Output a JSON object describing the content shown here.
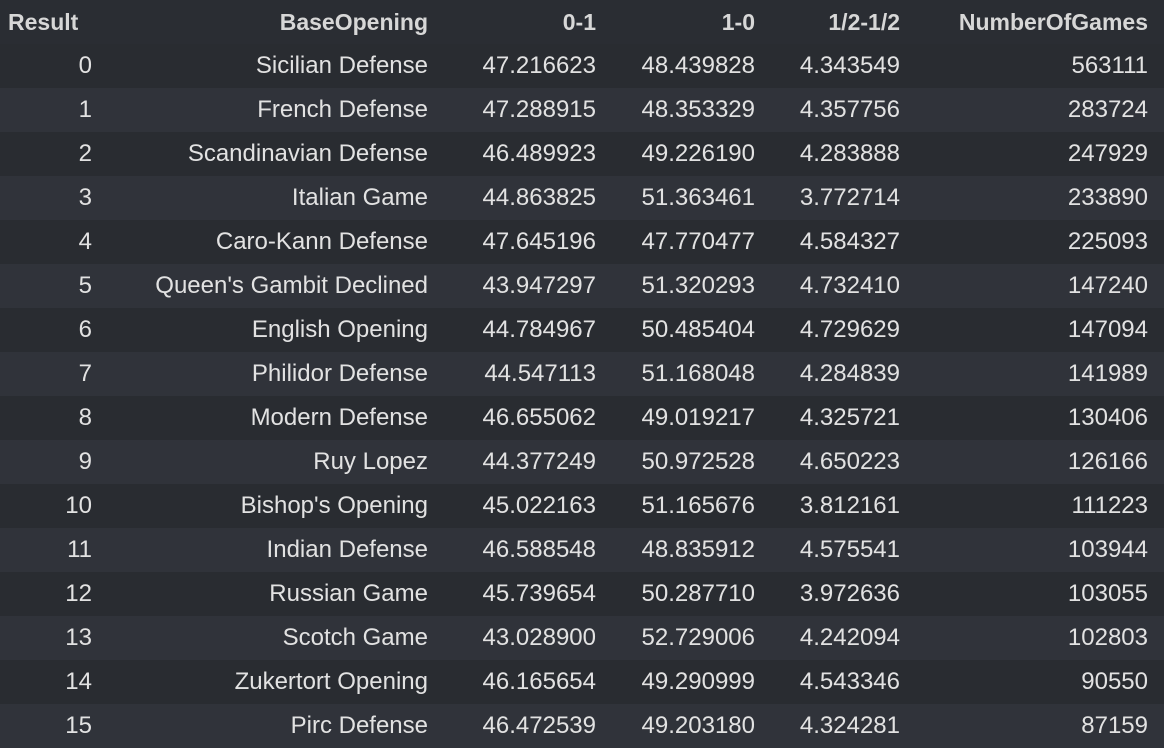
{
  "table": {
    "columns": [
      "Result",
      "BaseOpening",
      "0-1",
      "1-0",
      "1/2-1/2",
      "NumberOfGames"
    ],
    "rows": [
      {
        "index": "0",
        "opening": "Sicilian Defense",
        "black": "47.216623",
        "white": "48.439828",
        "draw": "4.343549",
        "games": "563111"
      },
      {
        "index": "1",
        "opening": "French Defense",
        "black": "47.288915",
        "white": "48.353329",
        "draw": "4.357756",
        "games": "283724"
      },
      {
        "index": "2",
        "opening": "Scandinavian Defense",
        "black": "46.489923",
        "white": "49.226190",
        "draw": "4.283888",
        "games": "247929"
      },
      {
        "index": "3",
        "opening": "Italian Game",
        "black": "44.863825",
        "white": "51.363461",
        "draw": "3.772714",
        "games": "233890"
      },
      {
        "index": "4",
        "opening": "Caro-Kann Defense",
        "black": "47.645196",
        "white": "47.770477",
        "draw": "4.584327",
        "games": "225093"
      },
      {
        "index": "5",
        "opening": "Queen's Gambit Declined",
        "black": "43.947297",
        "white": "51.320293",
        "draw": "4.732410",
        "games": "147240"
      },
      {
        "index": "6",
        "opening": "English Opening",
        "black": "44.784967",
        "white": "50.485404",
        "draw": "4.729629",
        "games": "147094"
      },
      {
        "index": "7",
        "opening": "Philidor Defense",
        "black": "44.547113",
        "white": "51.168048",
        "draw": "4.284839",
        "games": "141989"
      },
      {
        "index": "8",
        "opening": "Modern Defense",
        "black": "46.655062",
        "white": "49.019217",
        "draw": "4.325721",
        "games": "130406"
      },
      {
        "index": "9",
        "opening": "Ruy Lopez",
        "black": "44.377249",
        "white": "50.972528",
        "draw": "4.650223",
        "games": "126166"
      },
      {
        "index": "10",
        "opening": "Bishop's Opening",
        "black": "45.022163",
        "white": "51.165676",
        "draw": "3.812161",
        "games": "111223"
      },
      {
        "index": "11",
        "opening": "Indian Defense",
        "black": "46.588548",
        "white": "48.835912",
        "draw": "4.575541",
        "games": "103944"
      },
      {
        "index": "12",
        "opening": "Russian Game",
        "black": "45.739654",
        "white": "50.287710",
        "draw": "3.972636",
        "games": "103055"
      },
      {
        "index": "13",
        "opening": "Scotch Game",
        "black": "43.028900",
        "white": "52.729006",
        "draw": "4.242094",
        "games": "102803"
      },
      {
        "index": "14",
        "opening": "Zukertort Opening",
        "black": "46.165654",
        "white": "49.290999",
        "draw": "4.543346",
        "games": "90550"
      },
      {
        "index": "15",
        "opening": "Pirc Defense",
        "black": "46.472539",
        "white": "49.203180",
        "draw": "4.324281",
        "games": "87159"
      }
    ]
  }
}
